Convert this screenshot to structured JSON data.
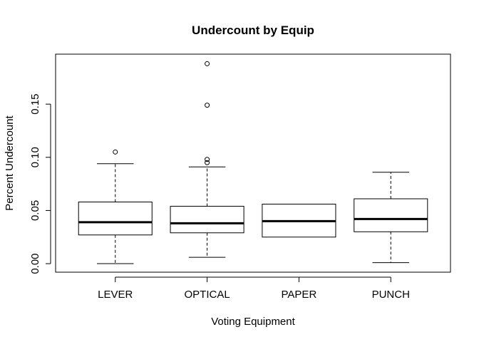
{
  "chart_data": {
    "type": "boxplot",
    "title": "Undercount by Equip",
    "xlabel": "Voting Equipment",
    "ylabel": "Percent Undercount",
    "ylim": [
      -0.008,
      0.197
    ],
    "yticks": [
      0.0,
      0.05,
      0.1,
      0.15
    ],
    "ytick_labels": [
      "0.00",
      "0.05",
      "0.10",
      "0.15"
    ],
    "grid": false,
    "legend": "none",
    "categories": [
      "LEVER",
      "OPTICAL",
      "PAPER",
      "PUNCH"
    ],
    "boxes": [
      {
        "name": "LEVER",
        "min": 0.0,
        "q1": 0.027,
        "median": 0.039,
        "q3": 0.058,
        "max": 0.094,
        "outliers": [
          0.105
        ]
      },
      {
        "name": "OPTICAL",
        "min": 0.006,
        "q1": 0.029,
        "median": 0.038,
        "q3": 0.054,
        "max": 0.091,
        "outliers": [
          0.095,
          0.098,
          0.149,
          0.188
        ]
      },
      {
        "name": "PAPER",
        "min": 0.025,
        "q1": 0.025,
        "median": 0.04,
        "q3": 0.056,
        "max": 0.056,
        "outliers": []
      },
      {
        "name": "PUNCH",
        "min": 0.001,
        "q1": 0.03,
        "median": 0.042,
        "q3": 0.061,
        "max": 0.086,
        "outliers": []
      }
    ]
  }
}
